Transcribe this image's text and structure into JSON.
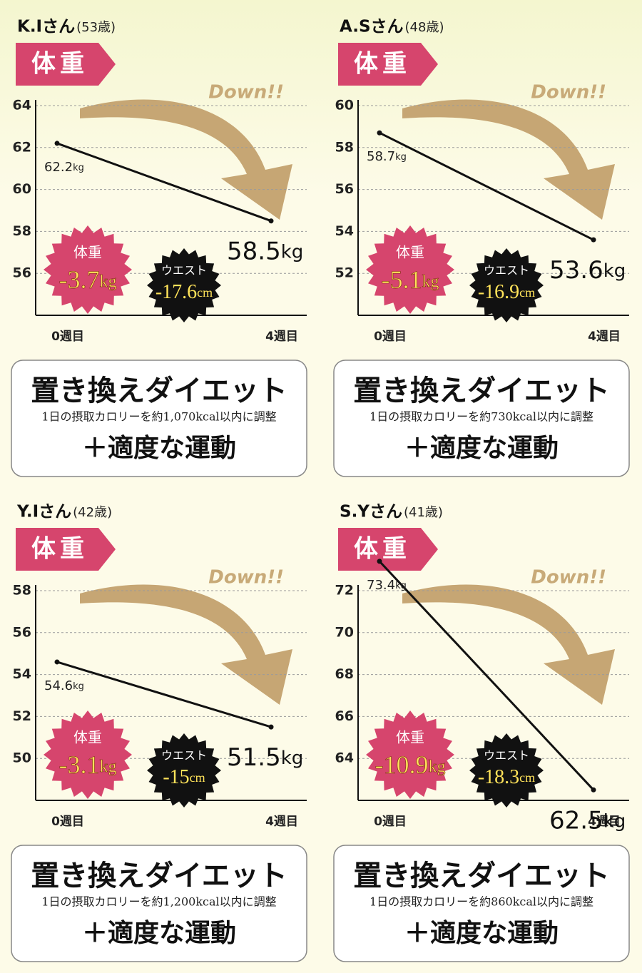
{
  "chart_data": [
    {
      "type": "line",
      "title": "K.Iさん",
      "subtitle": "(53歳)",
      "tag": "体重",
      "annotation": "Down!!",
      "categories": [
        "0週目",
        "4週目"
      ],
      "values": [
        62.2,
        58.5
      ],
      "value_labels": [
        "62.2kg",
        "58.5kg"
      ],
      "color": "#111111",
      "ylim": [
        54,
        64
      ],
      "yticks": [
        56,
        58,
        60,
        62,
        64
      ],
      "grid": true,
      "weight_badge": {
        "label": "体重",
        "value_label": "-3.7kg"
      },
      "waist_badge": {
        "label": "ウエスト",
        "value_label": "-17.6cm"
      },
      "plan": {
        "title": "置き換えダイエット",
        "note": "1日の摂取カロリーを約1,070kcal以内に調整",
        "extra": "＋適度な運動"
      }
    },
    {
      "type": "line",
      "title": "A.Sさん",
      "subtitle": "(48歳)",
      "tag": "体重",
      "annotation": "Down!!",
      "categories": [
        "0週目",
        "4週目"
      ],
      "values": [
        58.7,
        53.6
      ],
      "value_labels": [
        "58.7kg",
        "53.6kg"
      ],
      "color": "#111111",
      "ylim": [
        50,
        60
      ],
      "yticks": [
        52,
        54,
        56,
        58,
        60
      ],
      "grid": true,
      "weight_badge": {
        "label": "体重",
        "value_label": "-5.1kg"
      },
      "waist_badge": {
        "label": "ウエスト",
        "value_label": "-16.9cm"
      },
      "plan": {
        "title": "置き換えダイエット",
        "note": "1日の摂取カロリーを約730kcal以内に調整",
        "extra": "＋適度な運動"
      }
    },
    {
      "type": "line",
      "title": "Y.Iさん",
      "subtitle": "(42歳)",
      "tag": "体重",
      "annotation": "Down!!",
      "categories": [
        "0週目",
        "4週目"
      ],
      "values": [
        54.6,
        51.5
      ],
      "value_labels": [
        "54.6kg",
        "51.5kg"
      ],
      "color": "#111111",
      "ylim": [
        48,
        58
      ],
      "yticks": [
        50,
        52,
        54,
        56,
        58
      ],
      "grid": true,
      "weight_badge": {
        "label": "体重",
        "value_label": "-3.1kg"
      },
      "waist_badge": {
        "label": "ウエスト",
        "value_label": "-15cm"
      },
      "plan": {
        "title": "置き換えダイエット",
        "note": "1日の摂取カロリーを約1,200kcal以内に調整",
        "extra": "＋適度な運動"
      }
    },
    {
      "type": "line",
      "title": "S.Yさん",
      "subtitle": "(41歳)",
      "tag": "体重",
      "annotation": "Down!!",
      "categories": [
        "0週目",
        "4週目"
      ],
      "values": [
        73.4,
        62.5
      ],
      "value_labels": [
        "73.4kg",
        "62.5kg"
      ],
      "color": "#111111",
      "ylim": [
        62,
        72
      ],
      "yticks": [
        64,
        66,
        68,
        70,
        72
      ],
      "grid": true,
      "weight_badge": {
        "label": "体重",
        "value_label": "-10.9kg"
      },
      "waist_badge": {
        "label": "ウエスト",
        "value_label": "-18.3cm"
      },
      "plan": {
        "title": "置き換えダイエット",
        "note": "1日の摂取カロリーを約860kcal以内に調整",
        "extra": "＋適度な運動"
      }
    }
  ]
}
